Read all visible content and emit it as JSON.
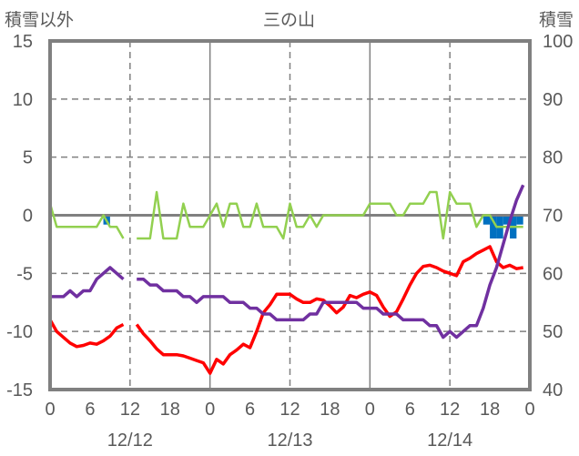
{
  "chart_data": {
    "type": "line",
    "title": "三の山",
    "ylabel_left": "積雪以外",
    "ylabel_right": "積雪",
    "ylim_left": [
      -15,
      15
    ],
    "ylim_right": [
      40,
      100
    ],
    "yticks_left": [
      "15",
      "10",
      "5",
      "0",
      "-5",
      "-10",
      "-15"
    ],
    "yticks_right": [
      "100",
      "90",
      "80",
      "70",
      "60",
      "50",
      "40"
    ],
    "xlim_hours": [
      0,
      72
    ],
    "xtick_labels": [
      "0",
      "6",
      "12",
      "18",
      "0",
      "6",
      "12",
      "18",
      "0",
      "6",
      "12",
      "18",
      "0"
    ],
    "date_labels": [
      {
        "label": "12/12",
        "hour": 12
      },
      {
        "label": "12/13",
        "hour": 36
      },
      {
        "label": "12/14",
        "hour": 60
      }
    ],
    "grid": true,
    "colors": {
      "red": "#FF0000",
      "purple": "#7030A0",
      "green": "#92D050",
      "blue": "#0070C0",
      "frame": "#808080"
    },
    "series": [
      {
        "name": "green",
        "axis": "left",
        "color": "#92D050",
        "values": [
          1,
          -1,
          -1,
          -1,
          -1,
          -1,
          -1,
          -1,
          0,
          -1,
          -1,
          -2,
          null,
          -2,
          -2,
          -2,
          2,
          -2,
          -2,
          -2,
          1,
          -1,
          -1,
          -1,
          0,
          1,
          -1,
          1,
          1,
          -1,
          -1,
          1,
          -1,
          -1,
          -1,
          -2,
          1,
          -1,
          -1,
          0,
          -1,
          0,
          0,
          0,
          0,
          0,
          0,
          0,
          1,
          1,
          1,
          1,
          0,
          0,
          1,
          1,
          1,
          2,
          2,
          -2,
          2,
          1,
          1,
          1,
          -1,
          0,
          0,
          -1,
          -1,
          -1,
          -1,
          -1
        ]
      },
      {
        "name": "red",
        "axis": "left",
        "color": "#FF0000",
        "values": [
          -9,
          -10,
          -10.5,
          -11,
          -11.3,
          -11.2,
          -11,
          -11.1,
          -10.8,
          -10.4,
          -9.7,
          -9.4,
          null,
          -9.4,
          -10.2,
          -10.8,
          -11.5,
          -12,
          -12,
          -12,
          -12.1,
          -12.3,
          -12.5,
          -12.7,
          -13.6,
          -12.4,
          -12.8,
          -12,
          -11.6,
          -11.1,
          -11.4,
          -10,
          -8.4,
          -7.7,
          -6.8,
          -6.8,
          -6.8,
          -7.2,
          -7.5,
          -7.5,
          -7.2,
          -7.3,
          -7.8,
          -8.4,
          -7.9,
          -6.9,
          -7.1,
          -6.8,
          -6.6,
          -6.9,
          -7.9,
          -8.7,
          -8.3,
          -7.2,
          -6,
          -5,
          -4.4,
          -4.3,
          -4.5,
          -4.8,
          -5,
          -5.2,
          -4,
          -3.7,
          -3.3,
          -3,
          -2.7,
          -4,
          -4.5,
          -4.3,
          -4.6,
          -4.5
        ]
      },
      {
        "name": "purple",
        "axis": "right",
        "color": "#7030A0",
        "values": [
          56,
          56,
          56,
          57,
          56,
          57,
          57,
          59,
          60,
          61,
          60,
          59,
          null,
          59,
          59,
          58,
          58,
          57,
          57,
          57,
          56,
          56,
          55,
          56,
          56,
          56,
          56,
          55,
          55,
          55,
          54,
          54,
          53,
          53,
          52,
          52,
          52,
          52,
          52,
          53,
          53,
          55,
          55,
          55,
          55,
          55,
          55,
          54,
          54,
          54,
          53,
          53,
          53,
          52,
          52,
          52,
          52,
          51,
          51,
          49,
          50,
          49,
          50,
          51,
          51,
          54,
          58,
          61,
          65,
          69,
          72.6,
          75.2
        ]
      },
      {
        "name": "blue-bars",
        "axis": "left",
        "type": "bar",
        "color": "#0070C0",
        "bars": [
          {
            "hour": 8,
            "value": -0.8
          },
          {
            "hour": 65,
            "value": -0.8
          },
          {
            "hour": 66,
            "value": -2
          },
          {
            "hour": 67,
            "value": -2
          },
          {
            "hour": 68,
            "value": -0.8
          },
          {
            "hour": 69,
            "value": -2
          },
          {
            "hour": 70,
            "value": -0.8
          }
        ]
      }
    ]
  }
}
